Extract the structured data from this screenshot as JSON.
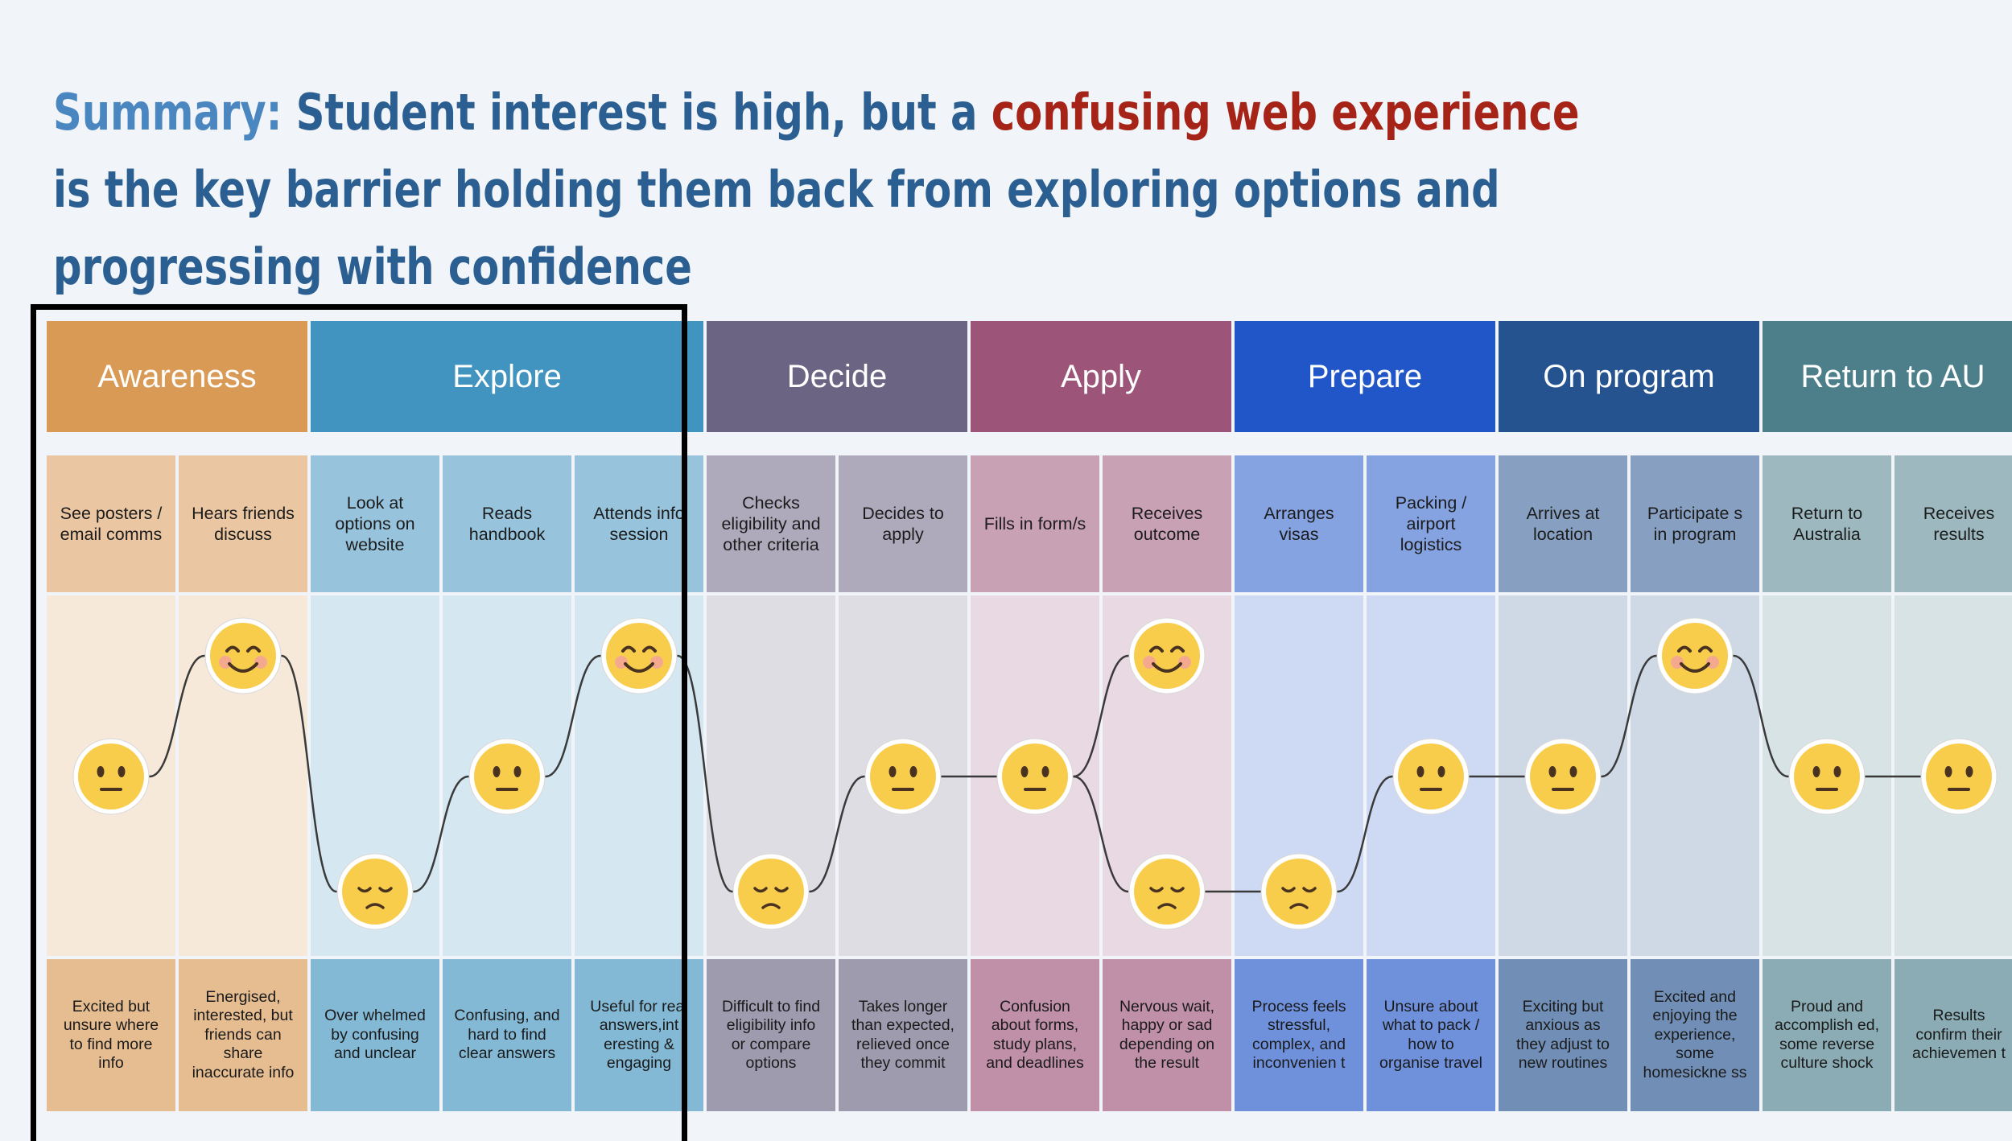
{
  "summary": {
    "lead": "Summary:",
    "part1": " Student interest is high, but a ",
    "highlight": "confusing web experience",
    "part2": " is the key barrier holding them back from exploring options and progressing with confidence"
  },
  "colors": {
    "title_blue": "#2b5f91",
    "title_lead": "#4a86bf",
    "title_highlight": "#a62317"
  },
  "stages": [
    {
      "label": "Awareness",
      "color": "#d99a55"
    },
    {
      "label": "Explore",
      "color": "#4193c0"
    },
    {
      "label": "Decide",
      "color": "#6b6583"
    },
    {
      "label": "Apply",
      "color": "#9c5479"
    },
    {
      "label": "Prepare",
      "color": "#2156c9"
    },
    {
      "label": "On program",
      "color": "#24538f"
    },
    {
      "label": "Return to AU",
      "color": "#4d7f8b"
    }
  ],
  "steps": [
    {
      "action": "See posters / email comms",
      "feeling": "Excited but unsure where to find more info",
      "mood": "neutral",
      "stage": 0
    },
    {
      "action": "Hears friends discuss",
      "feeling": "Energised, interested, but friends can share inaccurate info",
      "mood": "happy",
      "stage": 0
    },
    {
      "action": "Look at options on website",
      "feeling": "Over whelmed by confusing and unclear",
      "mood": "sad",
      "stage": 1
    },
    {
      "action": "Reads handbook",
      "feeling": "Confusing, and hard to find clear answers",
      "mood": "neutral",
      "stage": 1
    },
    {
      "action": "Attends info session",
      "feeling": "Useful for real answers,int eresting & engaging",
      "mood": "happy",
      "stage": 1
    },
    {
      "action": "Checks eligibility and other criteria",
      "feeling": "Difficult to find eligibility info or compare options",
      "mood": "sad",
      "stage": 2
    },
    {
      "action": "Decides to apply",
      "feeling": "Takes longer than expected, relieved once they commit",
      "mood": "neutral",
      "stage": 2
    },
    {
      "action": "Fills in form/s",
      "feeling": "Confusion about forms, study plans, and deadlines",
      "mood": "neutral",
      "stage": 3
    },
    {
      "action": "Receives outcome",
      "feeling": "Nervous wait, happy or sad depending on the result",
      "mood": "happy-sad",
      "stage": 3
    },
    {
      "action": "Arranges visas",
      "feeling": "Process feels stressful, complex, and inconvenien t",
      "mood": "sad",
      "stage": 4
    },
    {
      "action": "Packing / airport logistics",
      "feeling": "Unsure about what to pack / how to organise travel",
      "mood": "neutral",
      "stage": 4
    },
    {
      "action": "Arrives at location",
      "feeling": "Exciting but anxious as they adjust to new routines",
      "mood": "neutral",
      "stage": 5
    },
    {
      "action": "Participate s in program",
      "feeling": "Excited and enjoying the experience, some homesickne ss",
      "mood": "happy",
      "stage": 5
    },
    {
      "action": "Return to Australia",
      "feeling": "Proud and accomplish ed, some reverse culture shock",
      "mood": "neutral",
      "stage": 6
    },
    {
      "action": "Receives results",
      "feeling": "Results confirm their achievemen t",
      "mood": "neutral",
      "stage": 6
    }
  ]
}
